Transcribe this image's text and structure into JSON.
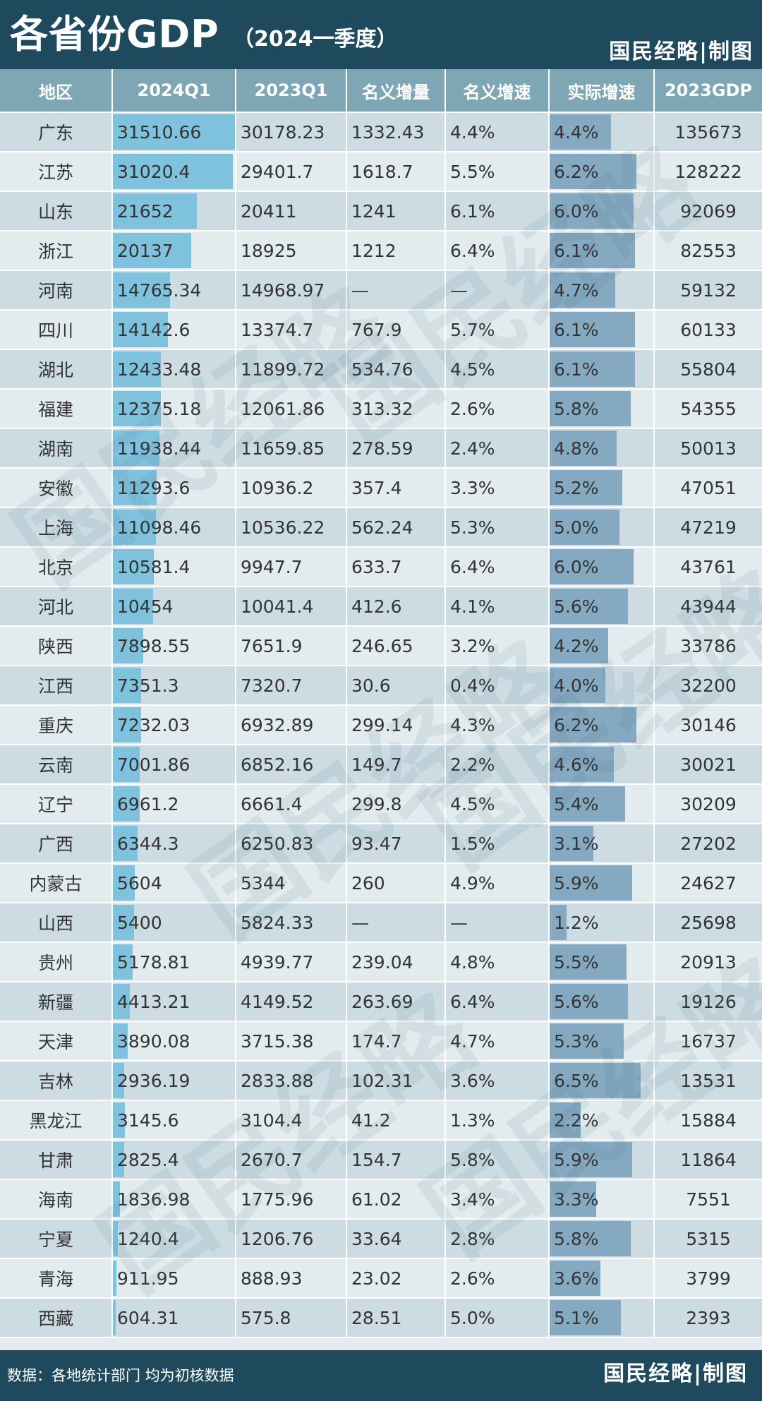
{
  "header": {
    "title": "各省份GDP",
    "subtitle": "（2024一季度）",
    "brand": "国民经略|制图"
  },
  "footer": {
    "source": "数据：各地统计部门 均为初核数据",
    "brand": "国民经略|制图"
  },
  "watermark": "国民经略",
  "colors": {
    "header_bg": "#1f4a5e",
    "column_header_bg": "#7fa6b5",
    "bar_2024q1": "#7fc2de",
    "bar_real_growth": "#86a9c2",
    "row_even": "#ccdce2",
    "row_odd": "#e2ebee"
  },
  "chart_data": {
    "type": "table",
    "columns": [
      "地区",
      "2024Q1",
      "2023Q1",
      "名义增量",
      "名义增速",
      "实际增速",
      "2023GDP"
    ],
    "rows": [
      [
        "广东",
        "31510.66",
        "30178.23",
        "1332.43",
        "4.4%",
        "4.4%",
        "135673"
      ],
      [
        "江苏",
        "31020.4",
        "29401.7",
        "1618.7",
        "5.5%",
        "6.2%",
        "128222"
      ],
      [
        "山东",
        "21652",
        "20411",
        "1241",
        "6.1%",
        "6.0%",
        "92069"
      ],
      [
        "浙江",
        "20137",
        "18925",
        "1212",
        "6.4%",
        "6.1%",
        "82553"
      ],
      [
        "河南",
        "14765.34",
        "14968.97",
        "—",
        "—",
        "4.7%",
        "59132"
      ],
      [
        "四川",
        "14142.6",
        "13374.7",
        "767.9",
        "5.7%",
        "6.1%",
        "60133"
      ],
      [
        "湖北",
        "12433.48",
        "11899.72",
        "534.76",
        "4.5%",
        "6.1%",
        "55804"
      ],
      [
        "福建",
        "12375.18",
        "12061.86",
        "313.32",
        "2.6%",
        "5.8%",
        "54355"
      ],
      [
        "湖南",
        "11938.44",
        "11659.85",
        "278.59",
        "2.4%",
        "4.8%",
        "50013"
      ],
      [
        "安徽",
        "11293.6",
        "10936.2",
        "357.4",
        "3.3%",
        "5.2%",
        "47051"
      ],
      [
        "上海",
        "11098.46",
        "10536.22",
        "562.24",
        "5.3%",
        "5.0%",
        "47219"
      ],
      [
        "北京",
        "10581.4",
        "9947.7",
        "633.7",
        "6.4%",
        "6.0%",
        "43761"
      ],
      [
        "河北",
        "10454",
        "10041.4",
        "412.6",
        "4.1%",
        "5.6%",
        "43944"
      ],
      [
        "陕西",
        "7898.55",
        "7651.9",
        "246.65",
        "3.2%",
        "4.2%",
        "33786"
      ],
      [
        "江西",
        "7351.3",
        "7320.7",
        "30.6",
        "0.4%",
        "4.0%",
        "32200"
      ],
      [
        "重庆",
        "7232.03",
        "6932.89",
        "299.14",
        "4.3%",
        "6.2%",
        "30146"
      ],
      [
        "云南",
        "7001.86",
        "6852.16",
        "149.7",
        "2.2%",
        "4.6%",
        "30021"
      ],
      [
        "辽宁",
        "6961.2",
        "6661.4",
        "299.8",
        "4.5%",
        "5.4%",
        "30209"
      ],
      [
        "广西",
        "6344.3",
        "6250.83",
        "93.47",
        "1.5%",
        "3.1%",
        "27202"
      ],
      [
        "内蒙古",
        "5604",
        "5344",
        "260",
        "4.9%",
        "5.9%",
        "24627"
      ],
      [
        "山西",
        "5400",
        "5824.33",
        "—",
        "—",
        "1.2%",
        "25698"
      ],
      [
        "贵州",
        "5178.81",
        "4939.77",
        "239.04",
        "4.8%",
        "5.5%",
        "20913"
      ],
      [
        "新疆",
        "4413.21",
        "4149.52",
        "263.69",
        "6.4%",
        "5.6%",
        "19126"
      ],
      [
        "天津",
        "3890.08",
        "3715.38",
        "174.7",
        "4.7%",
        "5.3%",
        "16737"
      ],
      [
        "吉林",
        "2936.19",
        "2833.88",
        "102.31",
        "3.6%",
        "6.5%",
        "13531"
      ],
      [
        "黑龙江",
        "3145.6",
        "3104.4",
        "41.2",
        "1.3%",
        "2.2%",
        "15884"
      ],
      [
        "甘肃",
        "2825.4",
        "2670.7",
        "154.7",
        "5.8%",
        "5.9%",
        "11864"
      ],
      [
        "海南",
        "1836.98",
        "1775.96",
        "61.02",
        "3.4%",
        "3.3%",
        "7551"
      ],
      [
        "宁夏",
        "1240.4",
        "1206.76",
        "33.64",
        "2.8%",
        "5.8%",
        "5315"
      ],
      [
        "青海",
        "911.95",
        "888.93",
        "23.02",
        "2.6%",
        "3.6%",
        "3799"
      ],
      [
        "西藏",
        "604.31",
        "575.8",
        "28.51",
        "5.0%",
        "5.1%",
        "2393"
      ]
    ]
  }
}
